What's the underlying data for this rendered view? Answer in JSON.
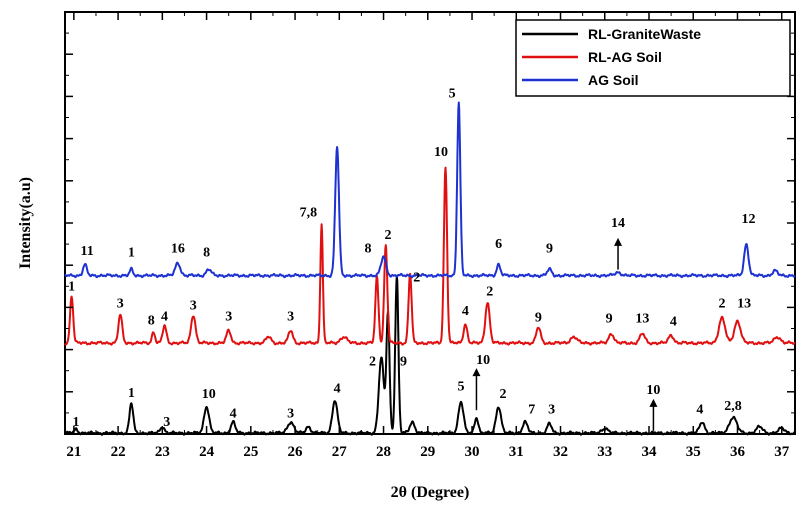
{
  "chart_data": {
    "type": "line",
    "xlabel": "2θ (Degree)",
    "ylabel": "Intensity(a.u)",
    "xlim": [
      20.8,
      37.3
    ],
    "ylim": [
      0,
      100
    ],
    "x_ticks": [
      21,
      22,
      23,
      24,
      25,
      26,
      27,
      28,
      29,
      30,
      31,
      32,
      33,
      34,
      35,
      36,
      37
    ],
    "y_ticks_labeled": false,
    "grid": false,
    "legend_position": "top-right",
    "series": [
      {
        "name": "RL-GraniteWaste",
        "color": "#000000",
        "baseline": 0.3,
        "peaks": [
          [
            21.05,
            1.2,
            0.06
          ],
          [
            22.3,
            9.5,
            0.06
          ],
          [
            23.0,
            2.0,
            0.07
          ],
          [
            24.0,
            8.5,
            0.08
          ],
          [
            24.6,
            3.5,
            0.07
          ],
          [
            25.9,
            3.5,
            0.1
          ],
          [
            26.3,
            2.0,
            0.08
          ],
          [
            26.9,
            10.5,
            0.08
          ],
          [
            27.95,
            24,
            0.08
          ],
          [
            28.1,
            38,
            0.05
          ],
          [
            28.3,
            50,
            0.05
          ],
          [
            28.65,
            3.5,
            0.08
          ],
          [
            29.75,
            10,
            0.08
          ],
          [
            30.1,
            5,
            0.06
          ],
          [
            30.6,
            8.5,
            0.08
          ],
          [
            31.2,
            3.5,
            0.08
          ],
          [
            31.75,
            3,
            0.07
          ],
          [
            33.0,
            1.5,
            0.1
          ],
          [
            35.2,
            3.5,
            0.08
          ],
          [
            35.9,
            5,
            0.12
          ],
          [
            36.5,
            2,
            0.1
          ],
          [
            37.0,
            1.5,
            0.1
          ]
        ]
      },
      {
        "name": "RL-AG Soil",
        "color": "#e01010",
        "baseline": 29,
        "peaks": [
          [
            20.95,
            15,
            0.05
          ],
          [
            22.05,
            9,
            0.06
          ],
          [
            22.8,
            3.5,
            0.05
          ],
          [
            23.05,
            5.5,
            0.06
          ],
          [
            23.7,
            9,
            0.07
          ],
          [
            24.5,
            4,
            0.07
          ],
          [
            25.4,
            2,
            0.08
          ],
          [
            25.9,
            4,
            0.07
          ],
          [
            26.6,
            38,
            0.04
          ],
          [
            27.1,
            2,
            0.1
          ],
          [
            27.85,
            21,
            0.05
          ],
          [
            28.05,
            31,
            0.05
          ],
          [
            28.6,
            22,
            0.05
          ],
          [
            29.4,
            56,
            0.05
          ],
          [
            29.85,
            6,
            0.06
          ],
          [
            30.35,
            13,
            0.07
          ],
          [
            31.5,
            5,
            0.07
          ],
          [
            32.3,
            2,
            0.1
          ],
          [
            33.15,
            3,
            0.08
          ],
          [
            33.85,
            3,
            0.08
          ],
          [
            34.5,
            2.5,
            0.08
          ],
          [
            35.65,
            8,
            0.1
          ],
          [
            36.0,
            7,
            0.1
          ],
          [
            36.9,
            2,
            0.1
          ]
        ]
      },
      {
        "name": "AG Soil",
        "color": "#1e32d2",
        "baseline": 50.5,
        "peaks": [
          [
            21.25,
            3.5,
            0.06
          ],
          [
            22.3,
            2,
            0.05
          ],
          [
            23.35,
            4,
            0.08
          ],
          [
            24.05,
            2,
            0.08
          ],
          [
            26.95,
            41,
            0.06
          ],
          [
            28.0,
            6,
            0.08
          ],
          [
            29.7,
            55,
            0.05
          ],
          [
            30.6,
            3.5,
            0.06
          ],
          [
            31.75,
            2,
            0.07
          ],
          [
            33.3,
            1,
            0.1
          ],
          [
            36.2,
            10,
            0.07
          ],
          [
            36.85,
            1.5,
            0.08
          ]
        ]
      }
    ],
    "annotations": [
      {
        "text": "1",
        "x": 21.05,
        "y": 2.6
      },
      {
        "text": "1",
        "x": 22.3,
        "y": 11.8
      },
      {
        "text": "3",
        "x": 23.1,
        "y": 2.6
      },
      {
        "text": "10",
        "x": 24.05,
        "y": 11.4
      },
      {
        "text": "4",
        "x": 24.6,
        "y": 5.3
      },
      {
        "text": "3",
        "x": 25.9,
        "y": 5.3
      },
      {
        "text": "4",
        "x": 26.95,
        "y": 13.3
      },
      {
        "text": "2",
        "x": 27.75,
        "y": 21.9
      },
      {
        "text": "9",
        "x": 28.45,
        "y": 21.9
      },
      {
        "text": "5",
        "x": 29.75,
        "y": 13.9
      },
      {
        "text": "10",
        "x": 30.25,
        "y": 22.3
      },
      {
        "text": "2",
        "x": 30.7,
        "y": 11.4
      },
      {
        "text": "7",
        "x": 31.35,
        "y": 6.5
      },
      {
        "text": "3",
        "x": 31.8,
        "y": 6.5
      },
      {
        "text": "10",
        "x": 34.1,
        "y": 12.8
      },
      {
        "text": "4",
        "x": 35.15,
        "y": 6.5
      },
      {
        "text": "2,8",
        "x": 35.9,
        "y": 7.7
      },
      {
        "text": "1",
        "x": 20.95,
        "y": 45.8
      },
      {
        "text": "3",
        "x": 22.05,
        "y": 40.3
      },
      {
        "text": "8",
        "x": 22.75,
        "y": 34.9
      },
      {
        "text": "4",
        "x": 23.05,
        "y": 36.2
      },
      {
        "text": "3",
        "x": 23.7,
        "y": 39.7
      },
      {
        "text": "3",
        "x": 24.5,
        "y": 36.2
      },
      {
        "text": "3",
        "x": 25.9,
        "y": 36.2
      },
      {
        "text": "7,8",
        "x": 26.3,
        "y": 69.4
      },
      {
        "text": "8",
        "x": 27.65,
        "y": 57.8
      },
      {
        "text": "2",
        "x": 28.1,
        "y": 62.1
      },
      {
        "text": "2",
        "x": 28.75,
        "y": 48.6
      },
      {
        "text": "10",
        "x": 29.3,
        "y": 88.6
      },
      {
        "text": "4",
        "x": 29.85,
        "y": 38.0
      },
      {
        "text": "2",
        "x": 30.4,
        "y": 44.1
      },
      {
        "text": "9",
        "x": 31.5,
        "y": 35.9
      },
      {
        "text": "9",
        "x": 33.1,
        "y": 35.6
      },
      {
        "text": "13",
        "x": 33.85,
        "y": 35.6
      },
      {
        "text": "4",
        "x": 34.55,
        "y": 34.6
      },
      {
        "text": "2",
        "x": 35.65,
        "y": 40.3
      },
      {
        "text": "13",
        "x": 36.15,
        "y": 40.3
      },
      {
        "text": "11",
        "x": 21.3,
        "y": 57.1
      },
      {
        "text": "1",
        "x": 22.3,
        "y": 56.5
      },
      {
        "text": "16",
        "x": 23.35,
        "y": 57.8
      },
      {
        "text": "8",
        "x": 24.0,
        "y": 56.5
      },
      {
        "text": "6",
        "x": 30.6,
        "y": 59.3
      },
      {
        "text": "9",
        "x": 31.75,
        "y": 57.8
      },
      {
        "text": "14",
        "x": 33.3,
        "y": 66.0
      },
      {
        "text": "12",
        "x": 36.25,
        "y": 67.3
      },
      {
        "text": "5",
        "x": 29.55,
        "y": 107.3
      }
    ],
    "arrows": [
      {
        "x": 30.1,
        "y_from": 7.6,
        "y_to": 21.0
      },
      {
        "x": 34.1,
        "y_from": 1.0,
        "y_to": 11.2
      },
      {
        "x": 33.3,
        "y_from": 52.4,
        "y_to": 62.5
      }
    ]
  }
}
